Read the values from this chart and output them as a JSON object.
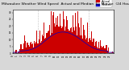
{
  "title": "Milwaukee Weather Wind Speed  Actual and Median  by Minute  (24 Hours) (Old)",
  "background_color": "#d8d8d8",
  "plot_bg_color": "#ffffff",
  "bar_color": "#cc0000",
  "median_color": "#0000cc",
  "n_minutes": 1440,
  "ylim": [
    0,
    32
  ],
  "legend_actual_color": "#cc0000",
  "legend_median_color": "#0000cc",
  "grid_color": "#888888",
  "title_fontsize": 3.2,
  "tick_fontsize": 2.0,
  "legend_fontsize": 2.5,
  "seed": 42
}
